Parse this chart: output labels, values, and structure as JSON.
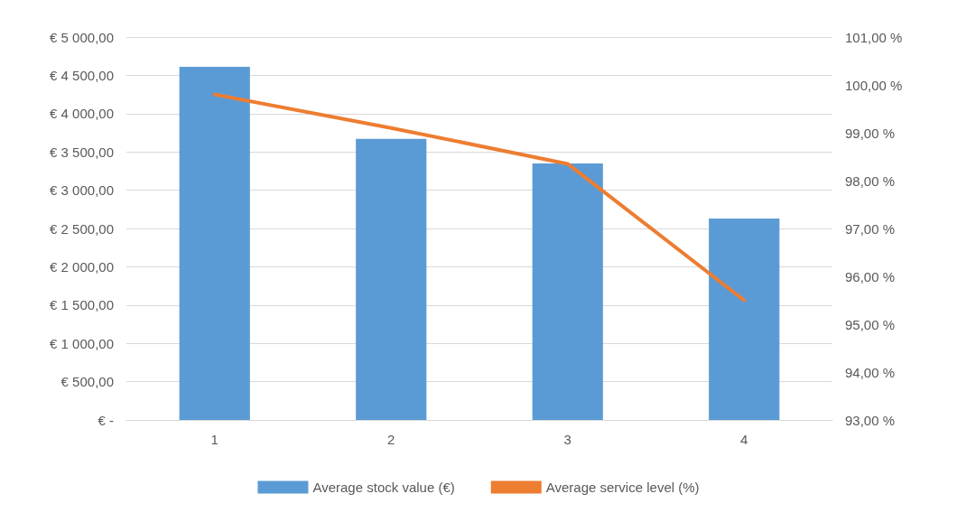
{
  "chart_data": {
    "type": "bar",
    "categories": [
      "1",
      "2",
      "3",
      "4"
    ],
    "series": [
      {
        "name": "Average stock value (€)",
        "color": "#5b9bd5",
        "values": [
          4610,
          3670,
          3350,
          2630
        ]
      },
      {
        "name": "Average service level (%)",
        "type": "line",
        "axis": "y2",
        "color": "#ed7d31",
        "values": [
          99.8,
          99.1,
          98.35,
          95.5
        ]
      }
    ],
    "ylim": [
      0,
      5000
    ],
    "yticks": [
      {
        "value": 0,
        "label": "€ -"
      },
      {
        "value": 500,
        "label": "€ 500,00"
      },
      {
        "value": 1000,
        "label": "€ 1 000,00"
      },
      {
        "value": 1500,
        "label": "€ 1 500,00"
      },
      {
        "value": 2000,
        "label": "€ 2 000,00"
      },
      {
        "value": 2500,
        "label": "€ 2 500,00"
      },
      {
        "value": 3000,
        "label": "€ 3 000,00"
      },
      {
        "value": 3500,
        "label": "€ 3 500,00"
      },
      {
        "value": 4000,
        "label": "€ 4 000,00"
      },
      {
        "value": 4500,
        "label": "€ 4 500,00"
      },
      {
        "value": 5000,
        "label": "€ 5 000,00"
      }
    ],
    "y2lim": [
      93,
      101
    ],
    "y2ticks": [
      {
        "value": 93,
        "label": "93,00 %"
      },
      {
        "value": 94,
        "label": "94,00 %"
      },
      {
        "value": 95,
        "label": "95,00 %"
      },
      {
        "value": 96,
        "label": "96,00 %"
      },
      {
        "value": 97,
        "label": "97,00 %"
      },
      {
        "value": 98,
        "label": "98,00 %"
      },
      {
        "value": 99,
        "label": "99,00 %"
      },
      {
        "value": 100,
        "label": "100,00 %"
      },
      {
        "value": 101,
        "label": "101,00 %"
      }
    ],
    "grid": "y",
    "legend": "bottom",
    "marker": "none"
  }
}
